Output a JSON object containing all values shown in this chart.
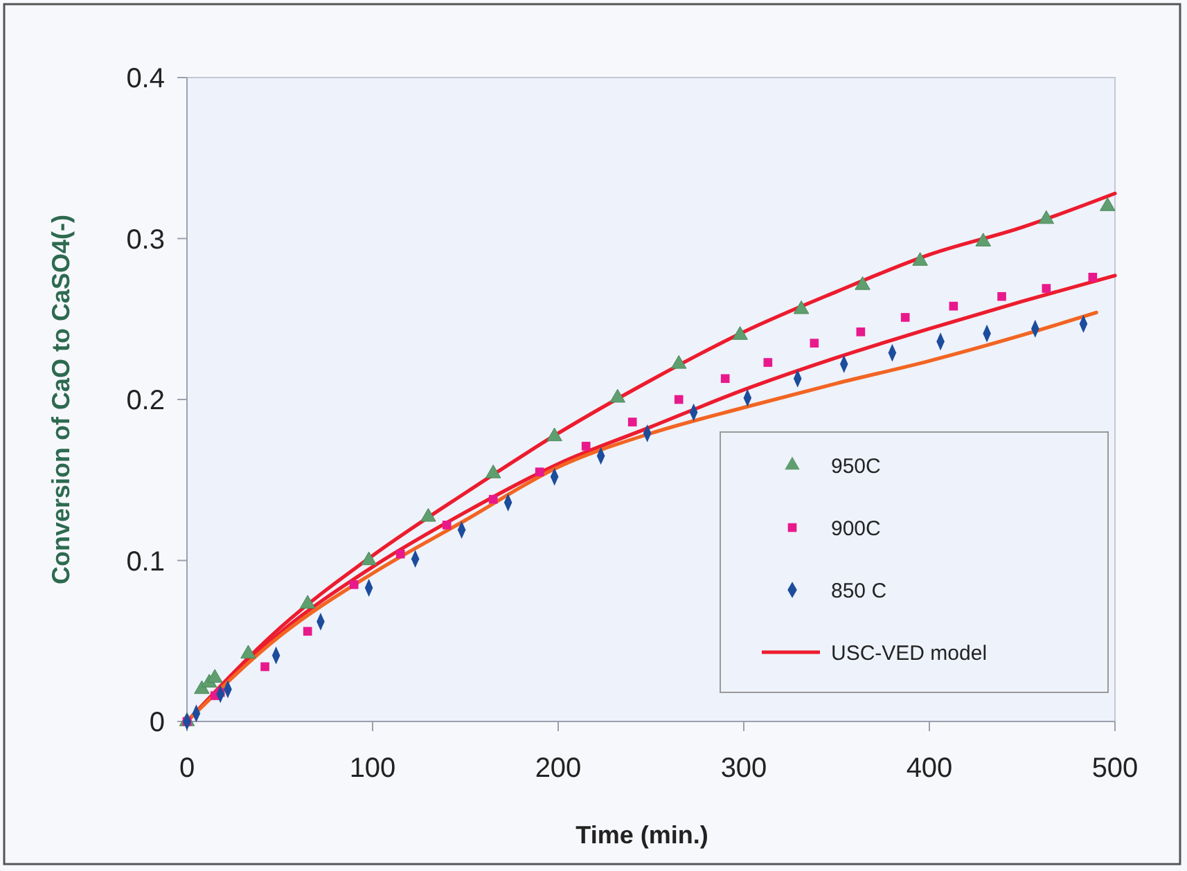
{
  "chart_data": {
    "type": "scatter",
    "xlabel": "Time (min.)",
    "ylabel": "Conversion of CaO to CaSO4(-)",
    "xlim": [
      0,
      500
    ],
    "ylim": [
      0,
      0.4
    ],
    "xticks": [
      0,
      100,
      200,
      300,
      400,
      500
    ],
    "yticks": [
      0,
      0.1,
      0.2,
      0.3,
      0.4
    ],
    "grid": false,
    "legend": "bottom right",
    "series": [
      {
        "name": "950C",
        "marker": "triangle",
        "color": "#5f9e6e",
        "x": [
          0,
          8,
          12,
          15,
          33,
          65,
          98,
          130,
          165,
          198,
          232,
          265,
          298,
          331,
          364,
          395,
          429,
          463,
          496
        ],
        "values": [
          0,
          0.02,
          0.024,
          0.027,
          0.042,
          0.073,
          0.1,
          0.127,
          0.154,
          0.177,
          0.201,
          0.222,
          0.24,
          0.256,
          0.271,
          0.286,
          0.298,
          0.312,
          0.32
        ]
      },
      {
        "name": "900C",
        "marker": "square",
        "color": "#e8198b",
        "x": [
          0,
          15,
          18,
          42,
          65,
          90,
          115,
          140,
          165,
          190,
          215,
          240,
          265,
          290,
          313,
          338,
          363,
          387,
          413,
          439,
          463,
          488
        ],
        "values": [
          0,
          0.016,
          0.018,
          0.034,
          0.056,
          0.085,
          0.104,
          0.122,
          0.138,
          0.155,
          0.171,
          0.186,
          0.2,
          0.213,
          0.223,
          0.235,
          0.242,
          0.251,
          0.258,
          0.264,
          0.269,
          0.276
        ]
      },
      {
        "name": "850 C",
        "marker": "diamond",
        "color": "#1c4c9c",
        "x": [
          0,
          5,
          18,
          22,
          48,
          72,
          98,
          123,
          148,
          173,
          198,
          223,
          248,
          273,
          302,
          329,
          354,
          380,
          406,
          431,
          457,
          483
        ],
        "values": [
          0,
          0.005,
          0.017,
          0.02,
          0.041,
          0.062,
          0.083,
          0.101,
          0.119,
          0.136,
          0.152,
          0.165,
          0.179,
          0.192,
          0.201,
          0.213,
          0.222,
          0.229,
          0.236,
          0.241,
          0.244,
          0.247
        ]
      },
      {
        "name": "USC-VED model",
        "type": "line",
        "marker": "none",
        "line_style": "solid",
        "color": "#ec1c2e",
        "x": [
          0,
          50,
          100,
          150,
          200,
          250,
          300,
          350,
          400,
          450,
          500
        ],
        "values": [
          0,
          0.058,
          0.103,
          0.142,
          0.179,
          0.212,
          0.242,
          0.267,
          0.29,
          0.307,
          0.328
        ]
      },
      {
        "type": "line",
        "marker": "none",
        "line_style": "solid",
        "color": "#ec1c2e",
        "x": [
          0,
          50,
          100,
          150,
          200,
          250,
          300,
          350,
          400,
          450,
          500
        ],
        "values": [
          0,
          0.055,
          0.096,
          0.13,
          0.16,
          0.183,
          0.206,
          0.226,
          0.244,
          0.261,
          0.277
        ]
      },
      {
        "type": "line",
        "marker": "none",
        "line_style": "solid",
        "color": "#f26522",
        "x": [
          0,
          50,
          100,
          150,
          200,
          250,
          300,
          350,
          400,
          450,
          490
        ],
        "values": [
          0,
          0.053,
          0.092,
          0.125,
          0.158,
          0.179,
          0.195,
          0.21,
          0.224,
          0.24,
          0.254
        ]
      }
    ]
  }
}
